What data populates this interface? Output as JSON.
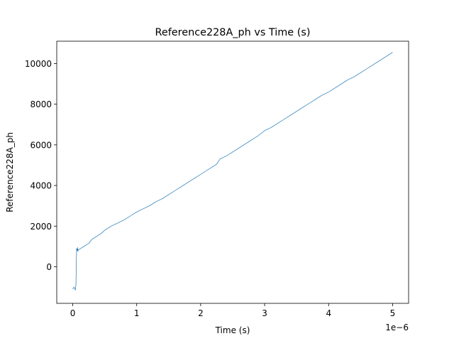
{
  "chart_data": {
    "type": "line",
    "title": "Reference228A_ph vs Time (s)",
    "xlabel": "Time (s)",
    "ylabel": "Reference228A_ph",
    "x_offset_text": "1e−6",
    "x_ticks": [
      0,
      1,
      2,
      3,
      4,
      5
    ],
    "x_tick_labels": [
      "0",
      "1",
      "2",
      "3",
      "4",
      "5"
    ],
    "y_ticks": [
      0,
      2000,
      4000,
      6000,
      8000,
      10000
    ],
    "y_tick_labels": [
      "0",
      "2000",
      "4000",
      "6000",
      "8000",
      "10000"
    ],
    "xlim": [
      -0.25,
      5.25
    ],
    "ylim": [
      -1800,
      11100
    ],
    "grid": false,
    "line_color": "#1f77b4",
    "series": [
      {
        "x": [
          0.0,
          0.02,
          0.04,
          0.05,
          0.06,
          0.07,
          0.075,
          0.08,
          0.09,
          0.1,
          0.12,
          0.15,
          0.2,
          0.25,
          0.3,
          0.35,
          0.4,
          0.45,
          0.5,
          0.6,
          0.7,
          0.8,
          0.9,
          1.0,
          1.1,
          1.2,
          1.3,
          1.4,
          1.5,
          1.6,
          1.7,
          1.8,
          1.9,
          2.0,
          2.1,
          2.2,
          2.25,
          2.3,
          2.4,
          2.5,
          2.6,
          2.7,
          2.8,
          2.9,
          3.0,
          3.1,
          3.2,
          3.3,
          3.4,
          3.5,
          3.6,
          3.7,
          3.8,
          3.9,
          4.0,
          4.1,
          4.2,
          4.3,
          4.4,
          4.5,
          4.6,
          4.7,
          4.8,
          4.9,
          5.0
        ],
        "y": [
          -1100,
          -1000,
          -1150,
          -900,
          900,
          800,
          950,
          750,
          850,
          850,
          900,
          950,
          1050,
          1150,
          1350,
          1450,
          1550,
          1650,
          1800,
          2000,
          2150,
          2300,
          2500,
          2700,
          2850,
          3000,
          3200,
          3350,
          3550,
          3750,
          3950,
          4150,
          4350,
          4550,
          4750,
          4950,
          5050,
          5300,
          5450,
          5650,
          5850,
          6050,
          6250,
          6450,
          6700,
          6850,
          7050,
          7250,
          7450,
          7650,
          7850,
          8050,
          8250,
          8450,
          8600,
          8800,
          9000,
          9200,
          9350,
          9550,
          9750,
          9950,
          10150,
          10350,
          10550
        ]
      }
    ]
  }
}
